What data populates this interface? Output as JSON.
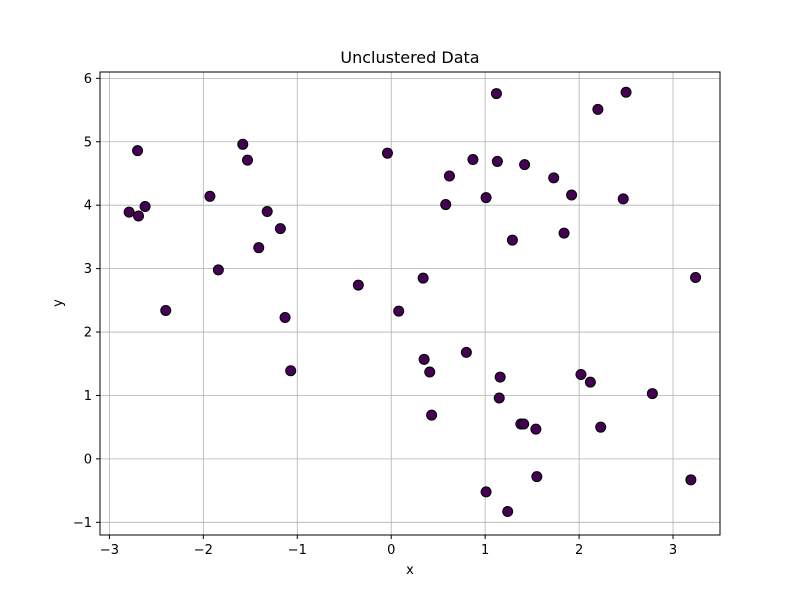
{
  "chart_data": {
    "type": "scatter",
    "title": "Unclustered Data",
    "xlabel": "x",
    "ylabel": "y",
    "xlim": [
      -3.1,
      3.5
    ],
    "ylim": [
      -1.2,
      6.1
    ],
    "xticks": [
      -3,
      -2,
      -1,
      0,
      1,
      2,
      3
    ],
    "yticks": [
      -1,
      0,
      1,
      2,
      3,
      4,
      5,
      6
    ],
    "grid": true,
    "marker_fill": "#440154",
    "marker_edge": "#000000",
    "points": [
      {
        "x": -2.79,
        "y": 3.89
      },
      {
        "x": -2.69,
        "y": 3.83
      },
      {
        "x": -2.62,
        "y": 3.98
      },
      {
        "x": -2.7,
        "y": 4.86
      },
      {
        "x": -2.4,
        "y": 2.34
      },
      {
        "x": -1.93,
        "y": 4.14
      },
      {
        "x": -1.84,
        "y": 2.98
      },
      {
        "x": -1.58,
        "y": 4.96
      },
      {
        "x": -1.53,
        "y": 4.71
      },
      {
        "x": -1.41,
        "y": 3.33
      },
      {
        "x": -1.32,
        "y": 3.9
      },
      {
        "x": -1.18,
        "y": 3.63
      },
      {
        "x": -1.13,
        "y": 2.23
      },
      {
        "x": -1.07,
        "y": 1.39
      },
      {
        "x": -0.35,
        "y": 2.74
      },
      {
        "x": -0.04,
        "y": 4.82
      },
      {
        "x": 0.08,
        "y": 2.33
      },
      {
        "x": 0.34,
        "y": 2.85
      },
      {
        "x": 0.35,
        "y": 1.57
      },
      {
        "x": 0.41,
        "y": 1.37
      },
      {
        "x": 0.43,
        "y": 0.69
      },
      {
        "x": 0.58,
        "y": 4.01
      },
      {
        "x": 0.62,
        "y": 4.46
      },
      {
        "x": 0.8,
        "y": 1.68
      },
      {
        "x": 0.87,
        "y": 4.72
      },
      {
        "x": 1.01,
        "y": 4.12
      },
      {
        "x": 1.01,
        "y": -0.52
      },
      {
        "x": 1.12,
        "y": 5.76
      },
      {
        "x": 1.13,
        "y": 4.69
      },
      {
        "x": 1.15,
        "y": 0.96
      },
      {
        "x": 1.16,
        "y": 1.29
      },
      {
        "x": 1.24,
        "y": -0.83
      },
      {
        "x": 1.29,
        "y": 3.45
      },
      {
        "x": 1.38,
        "y": 0.55
      },
      {
        "x": 1.41,
        "y": 0.55
      },
      {
        "x": 1.42,
        "y": 4.64
      },
      {
        "x": 1.54,
        "y": 0.47
      },
      {
        "x": 1.55,
        "y": -0.28
      },
      {
        "x": 1.73,
        "y": 4.43
      },
      {
        "x": 1.84,
        "y": 3.56
      },
      {
        "x": 1.92,
        "y": 4.16
      },
      {
        "x": 2.02,
        "y": 1.33
      },
      {
        "x": 2.12,
        "y": 1.21
      },
      {
        "x": 2.2,
        "y": 5.51
      },
      {
        "x": 2.23,
        "y": 0.5
      },
      {
        "x": 2.47,
        "y": 4.1
      },
      {
        "x": 2.5,
        "y": 5.78
      },
      {
        "x": 2.78,
        "y": 1.03
      },
      {
        "x": 3.19,
        "y": -0.33
      },
      {
        "x": 3.24,
        "y": 2.86
      }
    ]
  }
}
